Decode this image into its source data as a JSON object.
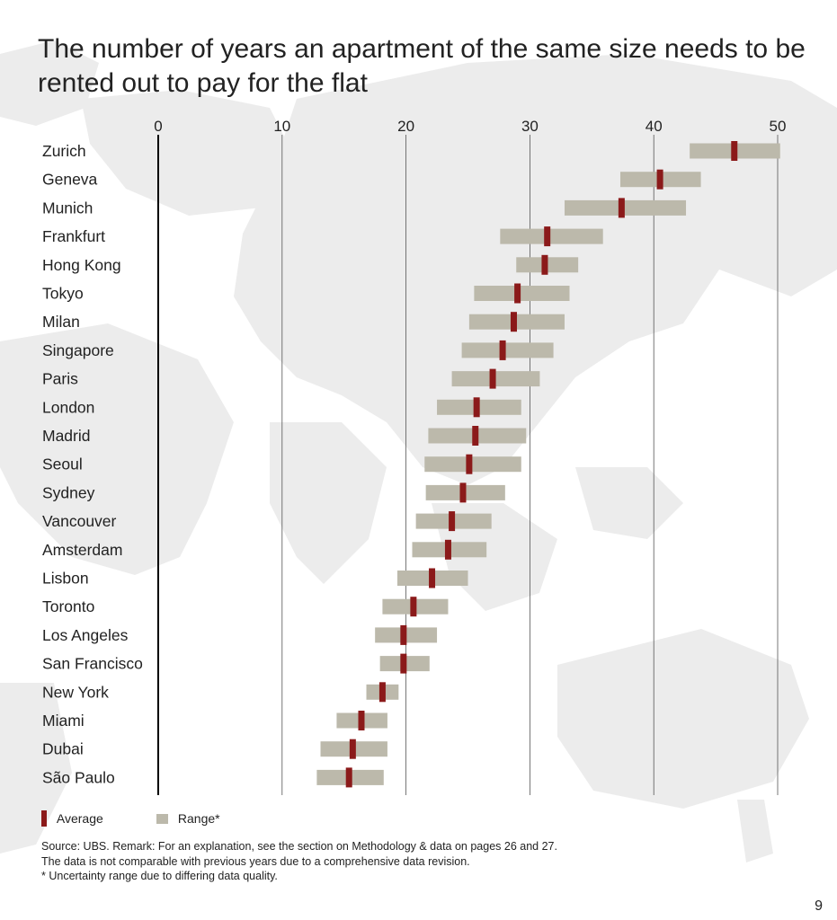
{
  "title": "The number of years an apartment of the same size needs to be rented out to pay for the flat",
  "colors": {
    "average": "#8b1a1a",
    "range": "#bcb9ab",
    "grid": "#555555",
    "zero_axis": "#000000",
    "map": "#ececec"
  },
  "chart_data": {
    "type": "bar",
    "orientation": "horizontal-range",
    "title": "The number of years an apartment of the same size needs to be rented out to pay for the flat",
    "xlabel": "",
    "ylabel": "",
    "xlim": [
      0,
      50
    ],
    "xticks": [
      "0",
      "10",
      "20",
      "30",
      "40",
      "50"
    ],
    "tick_values": [
      0,
      10,
      20,
      30,
      40,
      50
    ],
    "categories": [
      "Zurich",
      "Geneva",
      "Munich",
      "Frankfurt",
      "Hong Kong",
      "Tokyo",
      "Milan",
      "Singapore",
      "Paris",
      "London",
      "Madrid",
      "Seoul",
      "Sydney",
      "Vancouver",
      "Amsterdam",
      "Lisbon",
      "Toronto",
      "Los Angeles",
      "San Francisco",
      "New York",
      "Miami",
      "Dubai",
      "São Paulo"
    ],
    "series": [
      {
        "name": "Average",
        "values": [
          46.5,
          40.5,
          37.4,
          31.4,
          31.2,
          29.0,
          28.7,
          27.8,
          27.0,
          25.7,
          25.6,
          25.1,
          24.6,
          23.7,
          23.4,
          22.1,
          20.6,
          19.8,
          19.8,
          18.1,
          16.4,
          15.7,
          15.4
        ]
      },
      {
        "name": "Range*",
        "low": [
          42.9,
          37.3,
          32.8,
          27.6,
          28.9,
          25.5,
          25.1,
          24.5,
          23.7,
          22.5,
          21.8,
          21.5,
          21.6,
          20.8,
          20.5,
          19.3,
          18.1,
          17.5,
          17.9,
          16.8,
          14.4,
          13.1,
          12.8
        ],
        "high": [
          50.2,
          43.8,
          42.6,
          35.9,
          33.9,
          33.2,
          32.8,
          31.9,
          30.8,
          29.3,
          29.7,
          29.3,
          28.0,
          26.9,
          26.5,
          25.0,
          23.4,
          22.5,
          21.9,
          19.4,
          18.5,
          18.5,
          18.2
        ]
      }
    ],
    "legend": {
      "position": "bottom-left",
      "items": [
        "Average",
        "Range*"
      ]
    },
    "grid": true
  },
  "legend": {
    "average_label": "Average",
    "range_label": "Range*"
  },
  "notes": {
    "source": "Source: UBS. Remark: For an explanation, see the section on Methodology & data on pages 26 and 27.",
    "revision": "The data is not comparable with previous years due to a comprehensive data revision.",
    "footnote": "* Uncertainty range due to differing data quality."
  },
  "page_number": "9"
}
